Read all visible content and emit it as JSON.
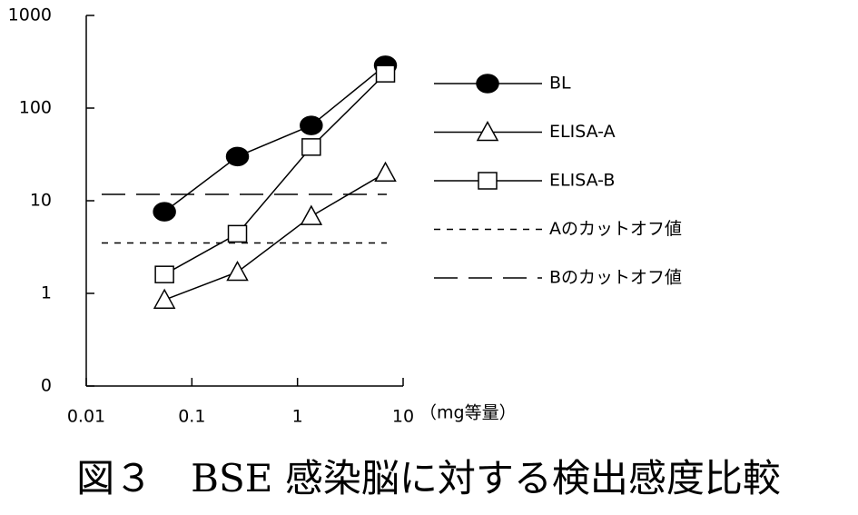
{
  "chart_data": {
    "type": "line",
    "caption": "図３　BSE 感染脳に対する検出感度比較",
    "x_label": "（mg等量）",
    "log_x": true,
    "log_y": true,
    "xlim": [
      0.01,
      10
    ],
    "xticks": [
      0.01,
      0.1,
      1,
      10
    ],
    "ylim": [
      0.1,
      1000
    ],
    "yticks": [
      {
        "value": 0.1,
        "label": "0"
      },
      1,
      10,
      100,
      1000
    ],
    "series": [
      {
        "name": "BL",
        "color": "#000000",
        "marker": "filled-circle",
        "line_style": "solid",
        "x": [
          0.055,
          0.27,
          1.35,
          6.8
        ],
        "values": [
          7.6,
          30,
          65,
          290
        ]
      },
      {
        "name": "ELISA-A",
        "color": "#000000",
        "marker": "open-triangle",
        "line_style": "solid",
        "x": [
          0.055,
          0.27,
          1.35,
          6.8
        ],
        "values": [
          0.85,
          1.7,
          6.8,
          20
        ]
      },
      {
        "name": "ELISA-B",
        "color": "#000000",
        "marker": "open-square",
        "line_style": "solid",
        "x": [
          0.055,
          0.27,
          1.35,
          6.8
        ],
        "values": [
          1.6,
          4.4,
          38,
          235
        ]
      },
      {
        "name": "Aのカットオフ値",
        "color": "#000000",
        "marker": "none",
        "line_style": "dotted",
        "x": [
          0.014,
          7
        ],
        "values": [
          3.5,
          3.5
        ]
      },
      {
        "name": "Bのカットオフ値",
        "color": "#000000",
        "marker": "none",
        "line_style": "dashed",
        "x": [
          0.014,
          7
        ],
        "values": [
          11.7,
          11.7
        ]
      }
    ]
  }
}
